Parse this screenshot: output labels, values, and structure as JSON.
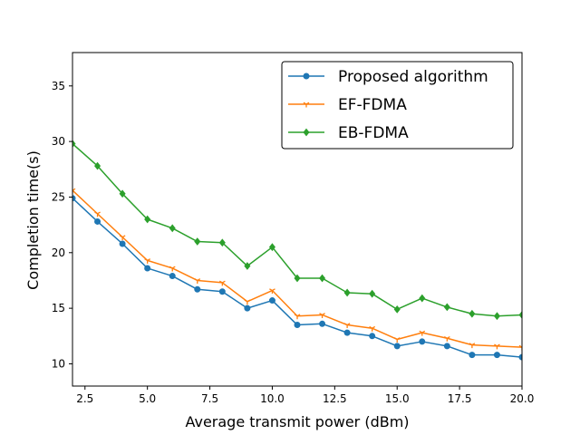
{
  "chart_data": {
    "type": "line",
    "title": "",
    "xlabel": "Average transmit power (dBm)",
    "ylabel": "Completion time(s)",
    "xlim": [
      2,
      20
    ],
    "ylim": [
      8,
      38
    ],
    "xticks": [
      2.5,
      5,
      7.5,
      10,
      12.5,
      15,
      17.5,
      20
    ],
    "xtick_labels": [
      "2.5",
      "5.0",
      "7.5",
      "10.0",
      "12.5",
      "15.0",
      "17.5",
      "20.0"
    ],
    "yticks": [
      10,
      15,
      20,
      25,
      30,
      35
    ],
    "ytick_labels": [
      "10",
      "15",
      "20",
      "25",
      "30",
      "35"
    ],
    "grid": false,
    "legend_position": "top-right",
    "x": [
      2,
      3,
      4,
      5,
      6,
      7,
      8,
      9,
      10,
      11,
      12,
      13,
      14,
      15,
      16,
      17,
      18,
      19,
      20
    ],
    "series": [
      {
        "name": "Proposed algorithm",
        "color": "#1f77b4",
        "marker": "circle",
        "values": [
          24.9,
          22.8,
          20.8,
          18.6,
          17.9,
          16.7,
          16.5,
          15.0,
          15.7,
          13.5,
          13.6,
          12.8,
          12.5,
          11.6,
          12.0,
          11.6,
          10.8,
          10.8,
          10.6
        ]
      },
      {
        "name": "EF-FDMA",
        "color": "#ff7f0e",
        "marker": "tri-down",
        "values": [
          25.6,
          23.5,
          21.4,
          19.3,
          18.6,
          17.5,
          17.3,
          15.6,
          16.6,
          14.3,
          14.4,
          13.5,
          13.2,
          12.2,
          12.8,
          12.3,
          11.7,
          11.6,
          11.5
        ]
      },
      {
        "name": "EB-FDMA",
        "color": "#2ca02c",
        "marker": "diamond",
        "values": [
          29.8,
          27.8,
          25.3,
          23.0,
          22.2,
          21.0,
          20.9,
          18.8,
          20.5,
          17.7,
          17.7,
          16.4,
          16.3,
          14.9,
          15.9,
          15.1,
          14.5,
          14.3,
          14.4
        ]
      }
    ]
  }
}
